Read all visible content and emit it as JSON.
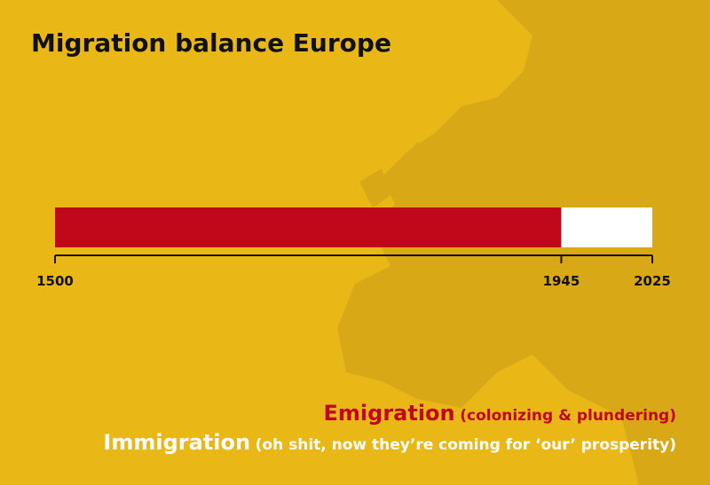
{
  "chart_data": {
    "type": "timeline",
    "title": "Migration balance Europe",
    "xlim": [
      1500,
      2025
    ],
    "xticks": [
      1500,
      1945,
      2025
    ],
    "series": [
      {
        "name": "Emigration",
        "description": "(colonizing & plundering)",
        "color": "#c1071a",
        "start": 1500,
        "end": 1945
      },
      {
        "name": "Immigration",
        "description": "(oh shit, now they’re coming for ‘our’ prosperity)",
        "color": "#ffffff",
        "start": 1945,
        "end": 2025
      }
    ]
  }
}
